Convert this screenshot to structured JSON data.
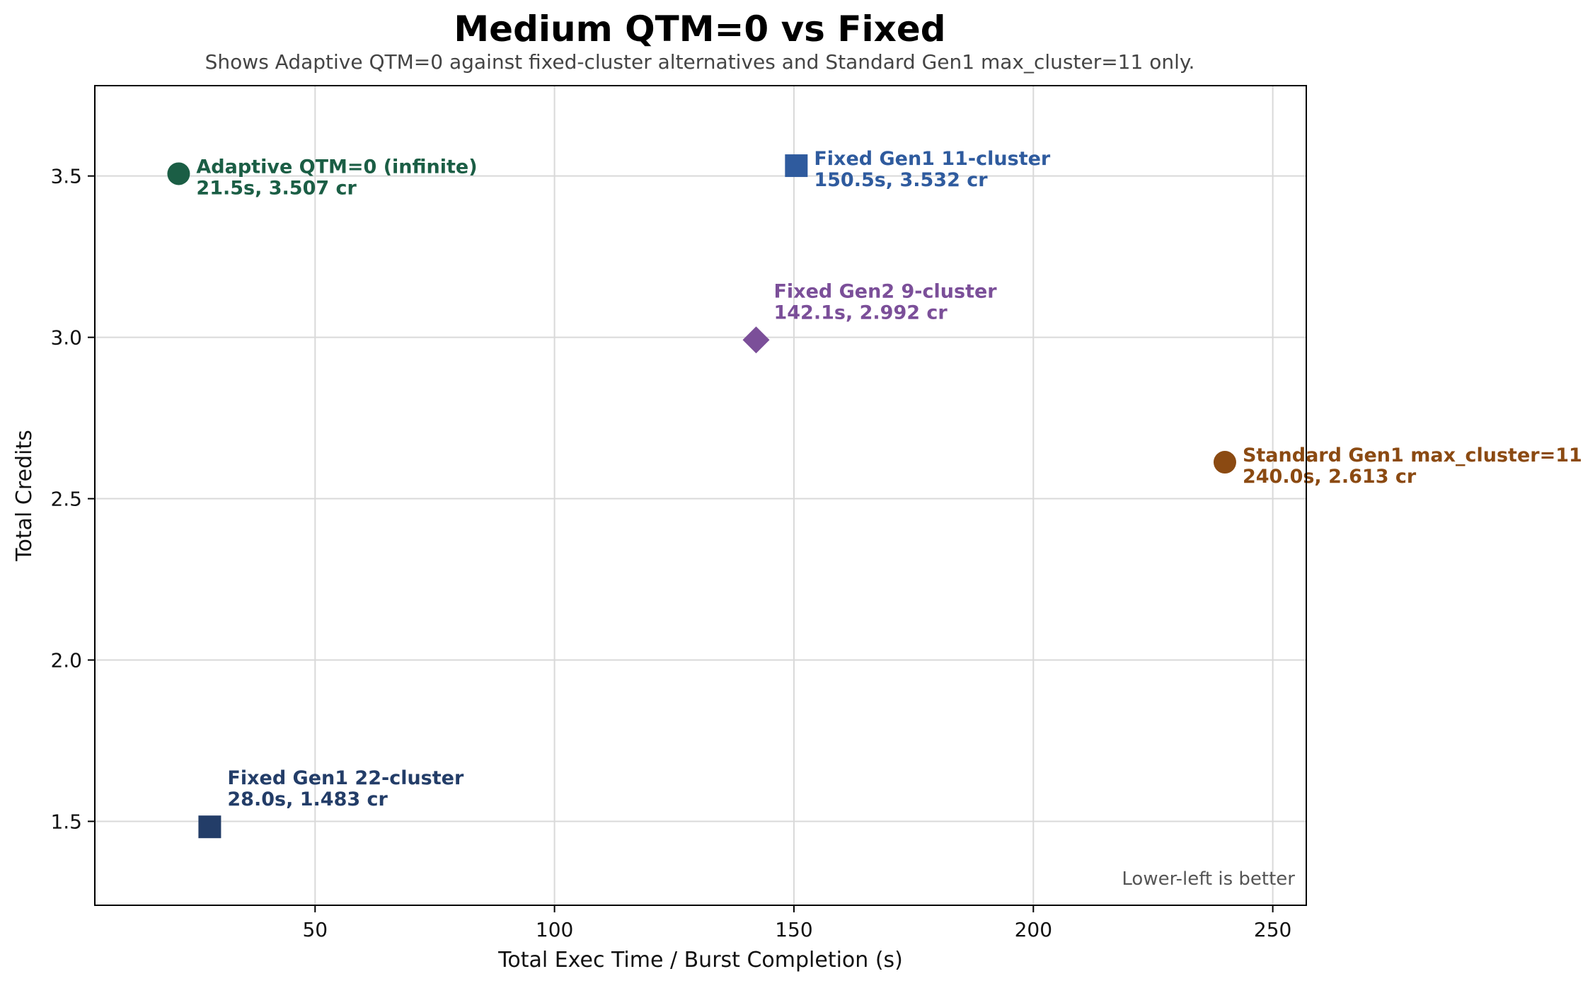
{
  "chart_data": {
    "type": "scatter",
    "title": "Medium QTM=0 vs Fixed",
    "subtitle": "Shows Adaptive QTM=0 against fixed-cluster alternatives and Standard Gen1 max_cluster=11 only.",
    "xlabel": "Total Exec Time / Burst Completion (s)",
    "ylabel": "Total Credits",
    "xlim": [
      4,
      257
    ],
    "ylim": [
      1.24,
      3.78
    ],
    "xticks": [
      50,
      100,
      150,
      200,
      250
    ],
    "xtick_labels": [
      "50",
      "100",
      "150",
      "200",
      "250"
    ],
    "yticks": [
      1.5,
      2.0,
      2.5,
      3.0,
      3.5
    ],
    "ytick_labels": [
      "1.5",
      "2.0",
      "2.5",
      "3.0",
      "3.5"
    ],
    "grid": true,
    "annotation": "Lower-left is better",
    "points": [
      {
        "name": "Adaptive QTM=0 (infinite)",
        "detail": "21.5s, 3.507 cr",
        "x": 21.5,
        "y": 3.507,
        "marker": "circle",
        "color": "#1b5e45",
        "label_side": "right"
      },
      {
        "name": "Fixed Gen1 11-cluster",
        "detail": "150.5s, 3.532 cr",
        "x": 150.5,
        "y": 3.532,
        "marker": "square",
        "color": "#2f5b9e",
        "label_side": "right"
      },
      {
        "name": "Fixed Gen2 9-cluster",
        "detail": "142.1s, 2.992 cr",
        "x": 142.1,
        "y": 2.992,
        "marker": "diamond",
        "color": "#7b4f99",
        "label_side": "above-right"
      },
      {
        "name": "Standard Gen1 max_cluster=11",
        "detail": "240.0s, 2.613 cr",
        "x": 240.0,
        "y": 2.613,
        "marker": "circle",
        "color": "#8b4a12",
        "label_side": "right"
      },
      {
        "name": "Fixed Gen1 22-cluster",
        "detail": "28.0s, 1.483 cr",
        "x": 28.0,
        "y": 1.483,
        "marker": "square",
        "color": "#233d68",
        "label_side": "above-right"
      }
    ]
  }
}
